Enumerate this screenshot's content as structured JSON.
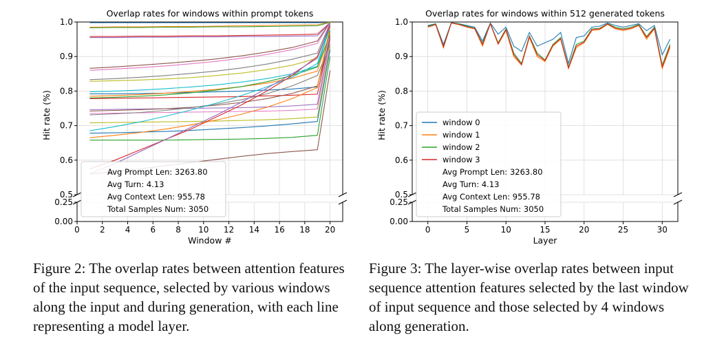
{
  "chart_data": [
    {
      "type": "line",
      "title": "Overlap rates for windows within prompt tokens",
      "xlabel": "Window #",
      "ylabel": "Hit rate (%)",
      "xlim": [
        0,
        21
      ],
      "ylim": [
        0.0,
        1.0
      ],
      "broken_y_axis": true,
      "xticks": [
        0,
        2,
        4,
        6,
        8,
        10,
        12,
        14,
        16,
        18,
        20
      ],
      "yticks": [
        "0.00",
        "0.25",
        "0.5",
        "0.6",
        "0.7",
        "0.8",
        "0.9",
        "1.0"
      ],
      "grid": true,
      "legend_loc": "lower left",
      "legend_text": [
        "Avg Prompt Len: 3263.80",
        "Avg Turn: 4.13",
        "Avg Context Len: 955.78",
        "Total Samples Num: 3050"
      ],
      "x": [
        1,
        3,
        5,
        7,
        9,
        11,
        13,
        15,
        17,
        19,
        20
      ],
      "series": [
        {
          "values": [
            0.998,
            0.998,
            0.998,
            0.998,
            0.998,
            0.998,
            0.998,
            0.998,
            0.998,
            0.998,
            0.999
          ]
        },
        {
          "values": [
            0.985,
            0.986,
            0.986,
            0.987,
            0.987,
            0.988,
            0.989,
            0.99,
            0.991,
            0.992,
            1.0
          ]
        },
        {
          "values": [
            0.983,
            0.984,
            0.984,
            0.985,
            0.985,
            0.986,
            0.986,
            0.987,
            0.988,
            0.989,
            0.999
          ]
        },
        {
          "values": [
            0.958,
            0.958,
            0.959,
            0.959,
            0.96,
            0.96,
            0.961,
            0.962,
            0.963,
            0.965,
            0.998
          ]
        },
        {
          "values": [
            0.955,
            0.955,
            0.956,
            0.956,
            0.957,
            0.957,
            0.958,
            0.958,
            0.959,
            0.96,
            0.997
          ]
        },
        {
          "values": [
            0.866,
            0.87,
            0.875,
            0.88,
            0.886,
            0.893,
            0.902,
            0.913,
            0.926,
            0.945,
            0.999
          ]
        },
        {
          "values": [
            0.86,
            0.864,
            0.868,
            0.873,
            0.879,
            0.886,
            0.895,
            0.906,
            0.92,
            0.938,
            0.998
          ]
        },
        {
          "values": [
            0.833,
            0.836,
            0.84,
            0.845,
            0.851,
            0.858,
            0.867,
            0.878,
            0.892,
            0.91,
            0.996
          ]
        },
        {
          "values": [
            0.828,
            0.83,
            0.832,
            0.835,
            0.839,
            0.845,
            0.852,
            0.862,
            0.875,
            0.895,
            0.99
          ]
        },
        {
          "values": [
            0.798,
            0.8,
            0.803,
            0.807,
            0.812,
            0.818,
            0.826,
            0.836,
            0.85,
            0.872,
            0.985
          ]
        },
        {
          "values": [
            0.792,
            0.792,
            0.793,
            0.794,
            0.796,
            0.798,
            0.8,
            0.803,
            0.806,
            0.812,
            0.975
          ]
        },
        {
          "values": [
            0.785,
            0.787,
            0.79,
            0.794,
            0.799,
            0.805,
            0.813,
            0.823,
            0.837,
            0.858,
            0.97
          ]
        },
        {
          "values": [
            0.78,
            0.782,
            0.785,
            0.789,
            0.795,
            0.803,
            0.813,
            0.827,
            0.845,
            0.87,
            0.965
          ]
        },
        {
          "values": [
            0.778,
            0.779,
            0.78,
            0.781,
            0.782,
            0.783,
            0.784,
            0.786,
            0.788,
            0.791,
            0.96
          ]
        },
        {
          "values": [
            0.746,
            0.747,
            0.748,
            0.749,
            0.75,
            0.751,
            0.752,
            0.754,
            0.757,
            0.762,
            0.955
          ]
        },
        {
          "values": [
            0.742,
            0.744,
            0.746,
            0.749,
            0.753,
            0.759,
            0.767,
            0.778,
            0.793,
            0.815,
            0.95
          ]
        },
        {
          "values": [
            0.735,
            0.736,
            0.737,
            0.738,
            0.739,
            0.74,
            0.741,
            0.742,
            0.744,
            0.748,
            0.94
          ]
        },
        {
          "values": [
            0.731,
            0.734,
            0.738,
            0.744,
            0.752,
            0.762,
            0.775,
            0.792,
            0.815,
            0.845,
            0.935
          ]
        },
        {
          "values": [
            0.708,
            0.709,
            0.71,
            0.711,
            0.712,
            0.713,
            0.715,
            0.717,
            0.72,
            0.725,
            0.93
          ]
        },
        {
          "values": [
            0.685,
            0.697,
            0.711,
            0.727,
            0.745,
            0.765,
            0.787,
            0.812,
            0.84,
            0.88,
            0.99
          ]
        },
        {
          "values": [
            0.678,
            0.679,
            0.681,
            0.683,
            0.686,
            0.69,
            0.694,
            0.699,
            0.705,
            0.712,
            0.92
          ]
        },
        {
          "values": [
            0.665,
            0.672,
            0.68,
            0.69,
            0.702,
            0.716,
            0.733,
            0.753,
            0.778,
            0.81,
            0.985
          ]
        },
        {
          "values": [
            0.658,
            0.658,
            0.658,
            0.658,
            0.659,
            0.66,
            0.661,
            0.663,
            0.666,
            0.672,
            0.9
          ]
        },
        {
          "values": [
            0.575,
            0.6,
            0.63,
            0.66,
            0.69,
            0.725,
            0.76,
            0.8,
            0.845,
            0.9,
            0.99
          ]
        },
        {
          "values": [
            0.56,
            0.59,
            0.625,
            0.66,
            0.695,
            0.73,
            0.768,
            0.808,
            0.85,
            0.895,
            0.995
          ]
        },
        {
          "values": [
            0.56,
            0.567,
            0.575,
            0.584,
            0.593,
            0.602,
            0.611,
            0.619,
            0.625,
            0.63,
            0.86
          ]
        }
      ]
    },
    {
      "type": "line",
      "title": "Overlap rates for windows within 512 generated tokens",
      "xlabel": "Layer",
      "ylabel": "Hit rate (%)",
      "xlim": [
        -2,
        32
      ],
      "ylim": [
        0.0,
        1.0
      ],
      "broken_y_axis": true,
      "xticks": [
        0,
        5,
        10,
        15,
        20,
        25,
        30
      ],
      "yticks": [
        "0.00",
        "0.25",
        "0.5",
        "0.6",
        "0.7",
        "0.8",
        "0.9",
        "1.0"
      ],
      "grid": true,
      "legend_loc": "lower left",
      "legend_text": [
        "Avg Prompt Len: 3263.80",
        "Avg Turn: 4.13",
        "Avg Context Len: 955.78",
        "Total Samples Num: 3050"
      ],
      "x": [
        0,
        1,
        2,
        3,
        4,
        5,
        6,
        7,
        8,
        9,
        10,
        11,
        12,
        13,
        14,
        15,
        16,
        17,
        18,
        19,
        20,
        21,
        22,
        23,
        24,
        25,
        26,
        27,
        28,
        29,
        30,
        31
      ],
      "series": [
        {
          "name": "window 0",
          "values": [
            0.99,
            0.995,
            0.935,
            0.998,
            0.995,
            0.99,
            0.985,
            0.945,
            0.997,
            0.965,
            0.985,
            0.93,
            0.915,
            0.97,
            0.93,
            0.94,
            0.95,
            0.97,
            0.88,
            0.955,
            0.96,
            0.985,
            0.988,
            0.997,
            0.99,
            0.985,
            0.99,
            0.995,
            0.975,
            0.99,
            0.905,
            0.95
          ]
        },
        {
          "name": "window 1",
          "values": [
            0.985,
            0.992,
            0.925,
            0.997,
            0.992,
            0.985,
            0.98,
            0.93,
            0.995,
            0.935,
            0.975,
            0.9,
            0.875,
            0.955,
            0.9,
            0.885,
            0.93,
            0.95,
            0.865,
            0.925,
            0.94,
            0.975,
            0.978,
            0.993,
            0.98,
            0.975,
            0.98,
            0.99,
            0.95,
            0.98,
            0.865,
            0.925
          ]
        },
        {
          "name": "window 2",
          "values": [
            0.988,
            0.994,
            0.93,
            0.998,
            0.994,
            0.988,
            0.982,
            0.938,
            0.996,
            0.94,
            0.98,
            0.91,
            0.88,
            0.96,
            0.91,
            0.89,
            0.935,
            0.955,
            0.87,
            0.935,
            0.945,
            0.98,
            0.982,
            0.995,
            0.985,
            0.98,
            0.985,
            0.993,
            0.958,
            0.985,
            0.875,
            0.935
          ]
        },
        {
          "name": "window 3",
          "values": [
            0.986,
            0.993,
            0.928,
            0.997,
            0.993,
            0.986,
            0.981,
            0.935,
            0.995,
            0.937,
            0.978,
            0.905,
            0.877,
            0.958,
            0.905,
            0.888,
            0.932,
            0.952,
            0.867,
            0.93,
            0.942,
            0.978,
            0.98,
            0.994,
            0.982,
            0.978,
            0.982,
            0.991,
            0.955,
            0.982,
            0.87,
            0.93
          ]
        }
      ]
    }
  ],
  "captions": {
    "left": "Figure 2: The overlap rates between attention features of the input sequence, selected by various windows along the input and during generation, with each line representing a model layer.",
    "right": "Figure 3: The layer-wise overlap rates between input sequence attention features selected by the last window of input sequence and those selected by 4 windows along generation."
  },
  "colors": [
    "#1f77b4",
    "#ff7f0e",
    "#2ca02c",
    "#d62728",
    "#9467bd",
    "#8c564b",
    "#e377c2",
    "#7f7f7f",
    "#bcbd22",
    "#17becf"
  ]
}
